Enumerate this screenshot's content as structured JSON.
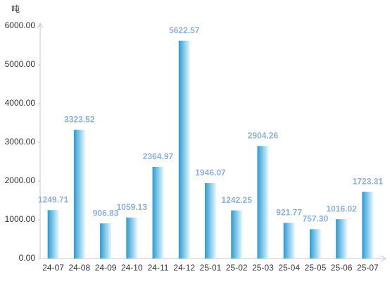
{
  "chart_data": {
    "type": "bar",
    "y_label": "吨",
    "categories": [
      "24-07",
      "24-08",
      "24-09",
      "24-10",
      "24-11",
      "24-12",
      "25-01",
      "25-02",
      "25-03",
      "25-04",
      "25-05",
      "25-06",
      "25-07"
    ],
    "values": [
      1249.71,
      3323.52,
      906.83,
      1059.13,
      2364.97,
      5622.57,
      1946.07,
      1242.25,
      2904.26,
      921.77,
      757.3,
      1016.02,
      1723.31
    ],
    "value_labels": [
      "1249.71",
      "3323.52",
      "906.83",
      "1059.13",
      "2364.97",
      "5622.57",
      "1946.07",
      "1242.25",
      "2904.26",
      "921.77",
      "757.30",
      "1016.02",
      "1723.31"
    ],
    "gradient": [
      "#2b9bd3",
      "#e6f8ff"
    ],
    "ylim": [
      0,
      6000
    ],
    "yticks": [
      {
        "value": 0,
        "label": "0.00"
      },
      {
        "value": 1000,
        "label": "1000.00"
      },
      {
        "value": 2000,
        "label": "2000.00"
      },
      {
        "value": 3000,
        "label": "3000.00"
      },
      {
        "value": 4000,
        "label": "4000.00"
      },
      {
        "value": 5000,
        "label": "5000.00"
      },
      {
        "value": 6000,
        "label": "6000.00"
      }
    ]
  }
}
